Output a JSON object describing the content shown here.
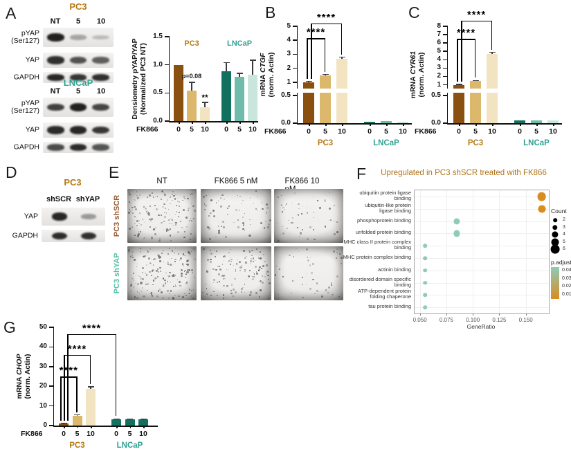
{
  "colors": {
    "brown_dark": "#8a500f",
    "gold": "#dcb86d",
    "cream": "#f2e4c0",
    "teal_dark": "#11705e",
    "teal_mid": "#6fbcaa",
    "teal_light": "#c9e6dd",
    "pc3_label": "#b5790f",
    "lncap_label": "#2fa293",
    "shscr_label": "#9b5b33",
    "shyap_label": "#54c0ab",
    "f_title": "#b0731d",
    "dot_orange": "#d98c20",
    "dot_teal": "#8ecbb8"
  },
  "panel_a": {
    "label": "A",
    "blots": [
      {
        "title": "PC3",
        "color": "pc3_label",
        "lanes": [
          "NT",
          "5",
          "10"
        ],
        "rows": [
          {
            "label": "pYAP\n(Ser127)",
            "bands": [
              0.95,
              0.32,
              0.22
            ]
          },
          {
            "label": "YAP",
            "bands": [
              0.88,
              0.72,
              0.66
            ]
          },
          {
            "label": "GAPDH",
            "bands": [
              0.92,
              0.85,
              0.88
            ]
          }
        ]
      },
      {
        "title": "LNCaP",
        "color": "lncap_label",
        "lanes": [
          "NT",
          "5",
          "10"
        ],
        "rows": [
          {
            "label": "pYAP\n(Ser127)",
            "bands": [
              0.8,
              0.95,
              0.78
            ]
          },
          {
            "label": "YAP",
            "bands": [
              0.9,
              0.92,
              0.85
            ]
          },
          {
            "label": "GAPDH",
            "bands": [
              0.75,
              0.9,
              0.7
            ]
          }
        ]
      }
    ],
    "chart": {
      "type": "bar",
      "ylabel": [
        "Densiometry pYAP/YAP",
        "(Normalized PC3 NT)"
      ],
      "xlabel_prefix": "FK866",
      "segments": [
        {
          "ticks": [
            "1.5",
            "1.0",
            "0.5",
            "0.0"
          ]
        }
      ],
      "inner_labels": [
        {
          "text": "PC3",
          "color": "pc3_label"
        },
        {
          "text": "LNCaP",
          "color": "lncap_label"
        }
      ],
      "bars": [
        {
          "x": "0",
          "v": 1.0,
          "e": 0,
          "c": "brown_dark"
        },
        {
          "x": "5",
          "v": 0.54,
          "e": 0.15,
          "c": "gold",
          "note": "p=0.08"
        },
        {
          "x": "10",
          "v": 0.24,
          "e": 0.09,
          "c": "cream",
          "note": "**"
        },
        {
          "x": "0",
          "v": 0.88,
          "e": 0.16,
          "c": "teal_dark"
        },
        {
          "x": "5",
          "v": 0.79,
          "e": 0.06,
          "c": "teal_mid"
        },
        {
          "x": "10",
          "v": 0.82,
          "e": 0.26,
          "c": "teal_light"
        }
      ]
    }
  },
  "panel_b": {
    "label": "B",
    "chart": {
      "type": "bar",
      "ylabel_prefix": "mRNA ",
      "ylabel_gene": "CTGF",
      "ylabel_line2": "(norm. Actin)",
      "xlabel_prefix": "FK866",
      "segments": [
        {
          "ticks": [
            "5",
            "4",
            "3",
            "2",
            "1"
          ]
        },
        {
          "ticks": [
            "0.5",
            "0.0"
          ]
        }
      ],
      "group_labels": [
        {
          "text": "PC3",
          "color": "pc3_label"
        },
        {
          "text": "LNCaP",
          "color": "lncap_label"
        }
      ],
      "bars": [
        {
          "x": "0",
          "v": 1.0,
          "e": 0.06,
          "c": "brown_dark"
        },
        {
          "x": "5",
          "v": 1.5,
          "e": 0.06,
          "c": "gold"
        },
        {
          "x": "10",
          "v": 2.7,
          "e": 0.1,
          "c": "cream"
        },
        {
          "x": "0",
          "v": 0.02,
          "e": 0,
          "c": "teal_dark"
        },
        {
          "x": "5",
          "v": 0.035,
          "e": 0,
          "c": "teal_mid"
        },
        {
          "x": "10",
          "v": 0.02,
          "e": 0,
          "c": "teal_light"
        }
      ],
      "brackets": [
        {
          "from": 0,
          "to": 1,
          "label": "****",
          "y": 4.15,
          "fo": -3
        },
        {
          "from": 0,
          "to": 2,
          "label": "****",
          "y": 5.2,
          "fo": 3
        }
      ]
    }
  },
  "panel_c": {
    "label": "C",
    "chart": {
      "type": "bar",
      "ylabel_prefix": "mRNA ",
      "ylabel_gene": "CYR61",
      "ylabel_line2": "(norm. Actin)",
      "xlabel_prefix": "FK866",
      "segments": [
        {
          "ticks": [
            "8",
            "7",
            "6",
            "5",
            "4",
            "3",
            "2",
            "1"
          ]
        },
        {
          "ticks": [
            "0.5",
            "0.0"
          ]
        }
      ],
      "group_labels": [
        {
          "text": "PC3",
          "color": "pc3_label"
        },
        {
          "text": "LNCaP",
          "color": "lncap_label"
        }
      ],
      "bars": [
        {
          "x": "0",
          "v": 1.0,
          "e": 0.05,
          "c": "brown_dark"
        },
        {
          "x": "5",
          "v": 1.45,
          "e": 0.06,
          "c": "gold"
        },
        {
          "x": "10",
          "v": 4.7,
          "e": 0.18,
          "c": "cream"
        },
        {
          "x": "0",
          "v": 0.05,
          "e": 0,
          "c": "teal_dark"
        },
        {
          "x": "5",
          "v": 0.05,
          "e": 0,
          "c": "teal_mid"
        },
        {
          "x": "10",
          "v": 0.05,
          "e": 0,
          "c": "teal_light"
        }
      ],
      "brackets": [
        {
          "from": 0,
          "to": 1,
          "label": "****",
          "y": 6.5,
          "fo": -3
        },
        {
          "from": 0,
          "to": 2,
          "label": "****",
          "y": 8.7,
          "fo": 3
        }
      ]
    }
  },
  "panel_d": {
    "label": "D",
    "title": "PC3",
    "title_color": "pc3_label",
    "lanes": [
      "shSCR",
      "shYAP"
    ],
    "rows": [
      {
        "label": "YAP",
        "bands": [
          0.92,
          0.38
        ]
      },
      {
        "label": "GAPDH",
        "bands": [
          0.9,
          0.88
        ]
      }
    ]
  },
  "panel_e": {
    "label": "E",
    "col_headers": [
      "NT",
      "FK866 5 nM",
      "FK866 10 nM"
    ],
    "rows": [
      {
        "label": "PC3 shSCR",
        "color": "shscr_label",
        "densities": [
          160,
          70,
          55
        ]
      },
      {
        "label": "PC3 shYAP",
        "color": "shyap_label",
        "densities": [
          185,
          140,
          48
        ]
      }
    ]
  },
  "panel_f": {
    "label": "F",
    "title": "Upregulated in PC3 shSCR treated with FK866",
    "xlabel": "GeneRatio",
    "xticks": [
      "0.050",
      "0.075",
      "0.100",
      "0.125",
      "0.150"
    ],
    "categories": [
      {
        "name": "ubiquitin protein ligase\nbinding",
        "gene_ratio": 0.165,
        "count": 6,
        "p_adjust": 0.005
      },
      {
        "name": "ubiquitin-like protein\nligase binding",
        "gene_ratio": 0.165,
        "count": 5,
        "p_adjust": 0.005
      },
      {
        "name": "phosphoprotein binding",
        "gene_ratio": 0.085,
        "count": 4,
        "p_adjust": 0.04
      },
      {
        "name": "unfolded protein binding",
        "gene_ratio": 0.085,
        "count": 4,
        "p_adjust": 0.04
      },
      {
        "name": "MHC class II protein complex\nbinding",
        "gene_ratio": 0.055,
        "count": 2,
        "p_adjust": 0.04
      },
      {
        "name": "MHC protein complex binding",
        "gene_ratio": 0.055,
        "count": 2,
        "p_adjust": 0.04
      },
      {
        "name": "actinin binding",
        "gene_ratio": 0.055,
        "count": 2,
        "p_adjust": 0.04
      },
      {
        "name": "disordered domain specific\nbinding",
        "gene_ratio": 0.055,
        "count": 2,
        "p_adjust": 0.04
      },
      {
        "name": "ATP-dependent protein\nfolding chaperone",
        "gene_ratio": 0.055,
        "count": 2,
        "p_adjust": 0.04
      },
      {
        "name": "tau protein binding",
        "gene_ratio": 0.055,
        "count": 2,
        "p_adjust": 0.04
      }
    ],
    "legend": {
      "count_title": "Count",
      "count_values": [
        "2",
        "3",
        "4",
        "5",
        "6"
      ],
      "padjust_title": "p.adjust",
      "padjust_labels": [
        "0.04",
        "0.03",
        "0.02",
        "0.01"
      ]
    }
  },
  "panel_g": {
    "label": "G",
    "chart": {
      "type": "bar",
      "ylabel_prefix": "mRNA ",
      "ylabel_gene": "CHOP",
      "ylabel_line2": "(norm. Actin)",
      "xlabel_prefix": "FK866",
      "segments": [
        {
          "ticks": [
            "50",
            "40",
            "30",
            "20",
            "10",
            "0"
          ]
        }
      ],
      "group_labels": [
        {
          "text": "PC3",
          "color": "pc3_label"
        },
        {
          "text": "LNCaP",
          "color": "lncap_label"
        }
      ],
      "bars": [
        {
          "x": "0",
          "v": 1.0,
          "e": 0.15,
          "c": "brown_dark"
        },
        {
          "x": "5",
          "v": 5.0,
          "e": 0.4,
          "c": "gold"
        },
        {
          "x": "10",
          "v": 18.5,
          "e": 1.2,
          "c": "cream"
        },
        {
          "x": "0",
          "v": 3.0,
          "e": 0.4,
          "c": "teal_dark"
        },
        {
          "x": "5",
          "v": 3.0,
          "e": 0.4,
          "c": "teal_dark"
        },
        {
          "x": "10",
          "v": 3.0,
          "e": 0.3,
          "c": "teal_dark"
        }
      ],
      "brackets": [
        {
          "from": 0,
          "to": 1,
          "label": "****",
          "y": 25,
          "fo": -5
        },
        {
          "from": 0,
          "to": 2,
          "label": "****",
          "y": 36,
          "fo": 0
        },
        {
          "from": 0,
          "to": 3,
          "label": "****",
          "y": 46.5,
          "fo": 5
        }
      ]
    }
  }
}
